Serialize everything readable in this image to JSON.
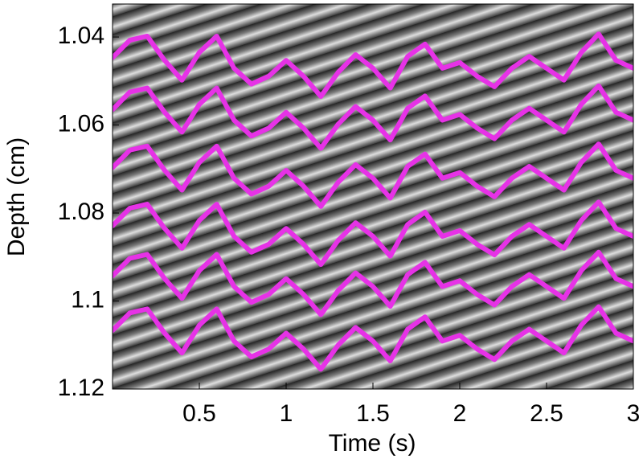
{
  "chart_data": {
    "type": "line",
    "xlabel": "Time (s)",
    "ylabel": "Depth (cm)",
    "x": [
      0,
      0.1,
      0.2,
      0.3,
      0.4,
      0.5,
      0.6,
      0.7,
      0.8,
      0.9,
      1.0,
      1.1,
      1.2,
      1.3,
      1.4,
      1.5,
      1.6,
      1.7,
      1.8,
      1.9,
      2.0,
      2.1,
      2.2,
      2.3,
      2.4,
      2.5,
      2.6,
      2.7,
      2.8,
      2.9,
      3.0
    ],
    "series": [
      {
        "color": "#e632e6",
        "values": [
          1.0447,
          1.0407,
          1.0398,
          1.0453,
          1.0498,
          1.0435,
          1.0398,
          1.0471,
          1.0507,
          1.0489,
          1.0453,
          1.0489,
          1.0535,
          1.048,
          1.044,
          1.0471,
          1.0516,
          1.0444,
          1.0416,
          1.0471,
          1.0458,
          1.0489,
          1.0513,
          1.0471,
          1.0444,
          1.0471,
          1.0498,
          1.0435,
          1.0393,
          1.0453,
          1.0471
        ]
      },
      {
        "color": "#e632e6",
        "values": [
          1.0565,
          1.0525,
          1.0516,
          1.0571,
          1.0616,
          1.0553,
          1.0516,
          1.0589,
          1.0625,
          1.0607,
          1.0571,
          1.0607,
          1.0653,
          1.0598,
          1.0558,
          1.0589,
          1.0634,
          1.0562,
          1.0534,
          1.0589,
          1.0576,
          1.0607,
          1.0631,
          1.0589,
          1.0562,
          1.0589,
          1.0616,
          1.0553,
          1.0511,
          1.0571,
          1.0589
        ]
      },
      {
        "color": "#e632e6",
        "values": [
          1.0697,
          1.0657,
          1.0648,
          1.0703,
          1.0748,
          1.0685,
          1.0648,
          1.0721,
          1.0757,
          1.0739,
          1.0703,
          1.0739,
          1.0785,
          1.073,
          1.069,
          1.0721,
          1.0766,
          1.0694,
          1.0666,
          1.0721,
          1.0708,
          1.0739,
          1.0763,
          1.0721,
          1.0694,
          1.0721,
          1.0748,
          1.0685,
          1.0643,
          1.0703,
          1.0721
        ]
      },
      {
        "color": "#e632e6",
        "values": [
          1.0829,
          1.0789,
          1.078,
          1.0835,
          1.088,
          1.0817,
          1.078,
          1.0853,
          1.0889,
          1.0871,
          1.0835,
          1.0871,
          1.0917,
          1.0862,
          1.0822,
          1.0853,
          1.0898,
          1.0826,
          1.0798,
          1.0853,
          1.084,
          1.0871,
          1.0895,
          1.0853,
          1.0826,
          1.0853,
          1.088,
          1.0817,
          1.0775,
          1.0835,
          1.0853
        ]
      },
      {
        "color": "#e632e6",
        "values": [
          1.0943,
          1.0903,
          1.0894,
          1.0949,
          1.0994,
          1.0931,
          1.0894,
          1.0967,
          1.1003,
          1.0985,
          1.0949,
          1.0985,
          1.1031,
          1.0976,
          1.0936,
          1.0967,
          1.1012,
          1.094,
          1.0912,
          1.0967,
          1.0954,
          1.0985,
          1.1009,
          1.0967,
          1.094,
          1.0967,
          1.0994,
          1.0931,
          1.0889,
          1.0949,
          1.0967
        ]
      },
      {
        "color": "#e632e6",
        "values": [
          1.1067,
          1.1027,
          1.1018,
          1.1073,
          1.1118,
          1.1055,
          1.1018,
          1.1091,
          1.1127,
          1.1109,
          1.1073,
          1.1109,
          1.1155,
          1.11,
          1.106,
          1.1091,
          1.1136,
          1.1064,
          1.1036,
          1.1091,
          1.1078,
          1.1109,
          1.1133,
          1.1091,
          1.1064,
          1.1091,
          1.1118,
          1.1055,
          1.1013,
          1.1073,
          1.1091
        ]
      }
    ],
    "xlim": [
      0,
      3
    ],
    "xticks": [
      0.5,
      1,
      1.5,
      2,
      2.5,
      3
    ],
    "ylim": [
      1.0325,
      1.12
    ],
    "yticks": [
      1.04,
      1.06,
      1.08,
      1.1,
      1.12
    ],
    "y_inverted": true
  }
}
